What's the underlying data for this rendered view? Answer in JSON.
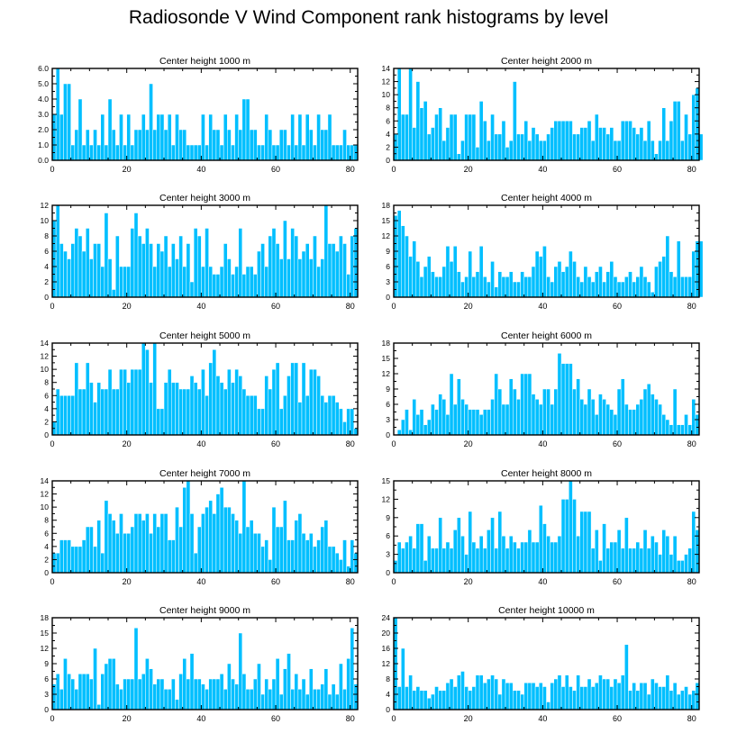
{
  "figure": {
    "title": "Radiosonde V Wind Component rank histograms by level"
  },
  "colors": {
    "bar": "#00BFFF",
    "bar_edge": "#FFFFFF",
    "axis": "#000000"
  },
  "chart_data": [
    {
      "type": "bar",
      "title": "Center height 1000 m",
      "xlim": [
        0,
        82
      ],
      "ylim": [
        0,
        6
      ],
      "xticks": [
        "0",
        "20",
        "40",
        "60",
        "80"
      ],
      "yticks": [
        "0.0",
        "1.0",
        "2.0",
        "3.0",
        "4.0",
        "5.0",
        "6.0"
      ],
      "x_start": 0,
      "values": [
        3,
        6,
        3,
        5,
        5,
        1,
        2,
        4,
        1,
        2,
        1,
        2,
        1,
        3,
        1,
        4,
        2,
        1,
        3,
        1,
        3,
        1,
        2,
        2,
        3,
        2,
        5,
        2,
        3,
        3,
        2,
        3,
        1,
        3,
        2,
        2,
        1,
        1,
        1,
        1,
        3,
        1,
        3,
        2,
        2,
        1,
        3,
        2,
        1,
        3,
        2,
        4,
        4,
        2,
        2,
        1,
        1,
        3,
        2,
        1,
        1,
        2,
        2,
        1,
        3,
        1,
        3,
        1,
        3,
        2,
        1,
        3,
        2,
        2,
        3,
        1,
        1,
        1,
        2,
        1,
        1,
        1
      ]
    },
    {
      "type": "bar",
      "title": "Center height 2000 m",
      "xlim": [
        0,
        82
      ],
      "ylim": [
        0,
        14
      ],
      "xticks": [
        "0",
        "20",
        "40",
        "60",
        "80"
      ],
      "yticks": [
        "0",
        "2",
        "4",
        "6",
        "8",
        "10",
        "12",
        "14"
      ],
      "x_start": 0,
      "values": [
        4,
        14,
        7,
        7,
        14,
        5,
        12,
        8,
        9,
        4,
        5,
        7,
        8,
        3,
        5,
        7,
        7,
        1,
        3,
        7,
        7,
        7,
        2,
        9,
        6,
        3,
        7,
        4,
        4,
        6,
        2,
        3,
        12,
        4,
        4,
        6,
        3,
        5,
        4,
        3,
        3,
        4,
        5,
        6,
        6,
        6,
        6,
        6,
        4,
        4,
        5,
        5,
        6,
        3,
        7,
        5,
        5,
        4,
        5,
        3,
        3,
        6,
        6,
        6,
        5,
        4,
        5,
        3,
        6,
        3,
        1,
        3,
        8,
        3,
        6,
        9,
        9,
        3,
        7,
        4,
        10,
        11,
        4
      ]
    },
    {
      "type": "bar",
      "title": "Center height 3000 m",
      "xlim": [
        0,
        82
      ],
      "ylim": [
        0,
        12
      ],
      "xticks": [
        "0",
        "20",
        "40",
        "60",
        "80"
      ],
      "yticks": [
        "0",
        "2",
        "4",
        "6",
        "8",
        "10",
        "12"
      ],
      "x_start": 0,
      "values": [
        10,
        12,
        7,
        6,
        5,
        7,
        9,
        8,
        6,
        9,
        5,
        7,
        7,
        4,
        11,
        5,
        1,
        8,
        4,
        4,
        4,
        9,
        11,
        8,
        7,
        9,
        7,
        4,
        7,
        6,
        8,
        4,
        7,
        5,
        8,
        4,
        7,
        2,
        9,
        8,
        4,
        9,
        4,
        3,
        3,
        4,
        7,
        5,
        3,
        4,
        9,
        3,
        4,
        4,
        3,
        6,
        7,
        4,
        8,
        9,
        7,
        5,
        10,
        5,
        9,
        8,
        5,
        6,
        7,
        5,
        8,
        4,
        5,
        12,
        7,
        7,
        6,
        8,
        7,
        3,
        8,
        9
      ]
    },
    {
      "type": "bar",
      "title": "Center height 4000 m",
      "xlim": [
        0,
        82
      ],
      "ylim": [
        0,
        18
      ],
      "xticks": [
        "0",
        "20",
        "40",
        "60",
        "80"
      ],
      "yticks": [
        "0",
        "3",
        "6",
        "9",
        "12",
        "15",
        "18"
      ],
      "x_start": 0,
      "values": [
        16,
        17,
        14,
        12,
        8,
        11,
        7,
        4,
        6,
        8,
        5,
        4,
        4,
        6,
        10,
        7,
        10,
        5,
        3,
        4,
        9,
        4,
        5,
        10,
        4,
        3,
        7,
        2,
        5,
        4,
        4,
        5,
        3,
        3,
        5,
        4,
        4,
        6,
        9,
        8,
        10,
        4,
        3,
        6,
        7,
        5,
        6,
        9,
        7,
        4,
        3,
        6,
        4,
        3,
        5,
        6,
        3,
        5,
        7,
        4,
        3,
        3,
        4,
        5,
        3,
        4,
        6,
        4,
        3,
        1,
        6,
        7,
        8,
        12,
        5,
        4,
        11,
        4,
        4,
        4,
        9,
        11,
        11
      ]
    },
    {
      "type": "bar",
      "title": "Center height 5000 m",
      "xlim": [
        0,
        82
      ],
      "ylim": [
        0,
        14
      ],
      "xticks": [
        "0",
        "20",
        "40",
        "60",
        "80"
      ],
      "yticks": [
        "0",
        "2",
        "4",
        "6",
        "8",
        "10",
        "12",
        "14"
      ],
      "x_start": 0,
      "values": [
        2,
        7,
        6,
        6,
        6,
        6,
        11,
        7,
        7,
        11,
        8,
        5,
        8,
        7,
        7,
        10,
        7,
        7,
        10,
        10,
        8,
        10,
        10,
        10,
        14,
        13,
        8,
        14,
        4,
        4,
        8,
        10,
        8,
        8,
        7,
        7,
        7,
        9,
        8,
        7,
        10,
        6,
        11,
        13,
        9,
        8,
        7,
        10,
        8,
        10,
        9,
        7,
        6,
        6,
        6,
        4,
        4,
        9,
        7,
        10,
        11,
        4,
        6,
        9,
        11,
        11,
        5,
        11,
        6,
        10,
        10,
        9,
        6,
        5,
        6,
        6,
        5,
        4,
        2,
        4,
        4,
        1
      ]
    },
    {
      "type": "bar",
      "title": "Center height 6000 m",
      "xlim": [
        0,
        82
      ],
      "ylim": [
        0,
        18
      ],
      "xticks": [
        "0",
        "20",
        "40",
        "60",
        "80"
      ],
      "yticks": [
        "0",
        "3",
        "6",
        "9",
        "12",
        "15",
        "18"
      ],
      "x_start": 0,
      "values": [
        0,
        1,
        3,
        5,
        1,
        7,
        4,
        5,
        2,
        3,
        6,
        5,
        8,
        7,
        4,
        12,
        6,
        11,
        7,
        6,
        5,
        5,
        5,
        4,
        5,
        5,
        7,
        12,
        9,
        6,
        6,
        11,
        9,
        7,
        12,
        12,
        12,
        8,
        7,
        6,
        9,
        9,
        6,
        9,
        16,
        14,
        14,
        14,
        9,
        11,
        7,
        6,
        9,
        7,
        4,
        8,
        7,
        6,
        5,
        4,
        9,
        11,
        6,
        5,
        5,
        6,
        7,
        9,
        10,
        8,
        7,
        6,
        4,
        3,
        2,
        9,
        2,
        2,
        4,
        2,
        7,
        4
      ]
    },
    {
      "type": "bar",
      "title": "Center height 7000 m",
      "xlim": [
        0,
        82
      ],
      "ylim": [
        0,
        14
      ],
      "xticks": [
        "0",
        "20",
        "40",
        "60",
        "80"
      ],
      "yticks": [
        "0",
        "2",
        "4",
        "6",
        "8",
        "10",
        "12",
        "14"
      ],
      "x_start": 0,
      "values": [
        3,
        3,
        5,
        5,
        5,
        4,
        4,
        4,
        5,
        7,
        7,
        4,
        8,
        3,
        11,
        9,
        8,
        6,
        9,
        6,
        6,
        7,
        9,
        9,
        8,
        9,
        6,
        9,
        7,
        9,
        9,
        5,
        5,
        10,
        7,
        13,
        14,
        9,
        3,
        7,
        9,
        10,
        11,
        9,
        12,
        13,
        10,
        10,
        9,
        8,
        6,
        14,
        7,
        8,
        6,
        6,
        4,
        5,
        2,
        10,
        7,
        7,
        11,
        5,
        5,
        8,
        9,
        6,
        5,
        6,
        4,
        5,
        7,
        8,
        4,
        4,
        3,
        2,
        5,
        1,
        5,
        3
      ]
    },
    {
      "type": "bar",
      "title": "Center height 8000 m",
      "xlim": [
        0,
        82
      ],
      "ylim": [
        0,
        15
      ],
      "xticks": [
        "0",
        "20",
        "40",
        "60",
        "80"
      ],
      "yticks": [
        "0",
        "3",
        "6",
        "9",
        "12",
        "15"
      ],
      "x_start": 0,
      "values": [
        2,
        5,
        4,
        5,
        6,
        4,
        8,
        8,
        2,
        6,
        4,
        4,
        9,
        4,
        5,
        4,
        7,
        9,
        6,
        3,
        10,
        5,
        4,
        6,
        4,
        7,
        9,
        4,
        10,
        6,
        4,
        6,
        5,
        4,
        5,
        5,
        7,
        5,
        5,
        11,
        8,
        6,
        5,
        5,
        6,
        12,
        12,
        15,
        12,
        6,
        10,
        10,
        10,
        4,
        7,
        2,
        8,
        4,
        5,
        5,
        7,
        4,
        9,
        4,
        4,
        5,
        4,
        7,
        4,
        6,
        5,
        3,
        7,
        6,
        3,
        6,
        2,
        2,
        3,
        4,
        10,
        7
      ]
    },
    {
      "type": "bar",
      "title": "Center height 9000 m",
      "xlim": [
        0,
        82
      ],
      "ylim": [
        0,
        18
      ],
      "xticks": [
        "0",
        "20",
        "40",
        "60",
        "80"
      ],
      "yticks": [
        "0",
        "3",
        "6",
        "9",
        "12",
        "15",
        "18"
      ],
      "x_start": 0,
      "values": [
        5,
        7,
        4,
        10,
        7,
        6,
        4,
        7,
        7,
        7,
        6,
        12,
        1,
        7,
        9,
        10,
        10,
        5,
        4,
        6,
        6,
        6,
        16,
        6,
        7,
        10,
        8,
        5,
        6,
        6,
        4,
        4,
        6,
        2,
        7,
        10,
        6,
        11,
        6,
        6,
        5,
        4,
        6,
        6,
        6,
        7,
        4,
        9,
        6,
        5,
        15,
        7,
        4,
        4,
        6,
        9,
        3,
        6,
        4,
        6,
        10,
        3,
        8,
        11,
        4,
        7,
        4,
        6,
        3,
        8,
        4,
        4,
        5,
        8,
        3,
        5,
        3,
        9,
        4,
        10,
        16,
        5
      ]
    },
    {
      "type": "bar",
      "title": "Center height 10000 m",
      "xlim": [
        0,
        82
      ],
      "ylim": [
        0,
        24
      ],
      "xticks": [
        "0",
        "20",
        "40",
        "60",
        "80"
      ],
      "yticks": [
        "0",
        "4",
        "8",
        "12",
        "16",
        "20",
        "24"
      ],
      "x_start": 0,
      "values": [
        24,
        6,
        16,
        6,
        9,
        5,
        6,
        5,
        5,
        3,
        4,
        6,
        5,
        5,
        7,
        8,
        6,
        9,
        10,
        6,
        5,
        6,
        9,
        9,
        7,
        8,
        9,
        8,
        4,
        8,
        7,
        7,
        5,
        5,
        4,
        7,
        7,
        7,
        6,
        7,
        6,
        2,
        7,
        8,
        9,
        6,
        9,
        6,
        5,
        9,
        6,
        6,
        8,
        6,
        7,
        9,
        8,
        8,
        6,
        8,
        7,
        9,
        17,
        5,
        7,
        5,
        7,
        7,
        4,
        8,
        7,
        6,
        6,
        9,
        5,
        7,
        4,
        5,
        6,
        4,
        5,
        7
      ]
    }
  ]
}
